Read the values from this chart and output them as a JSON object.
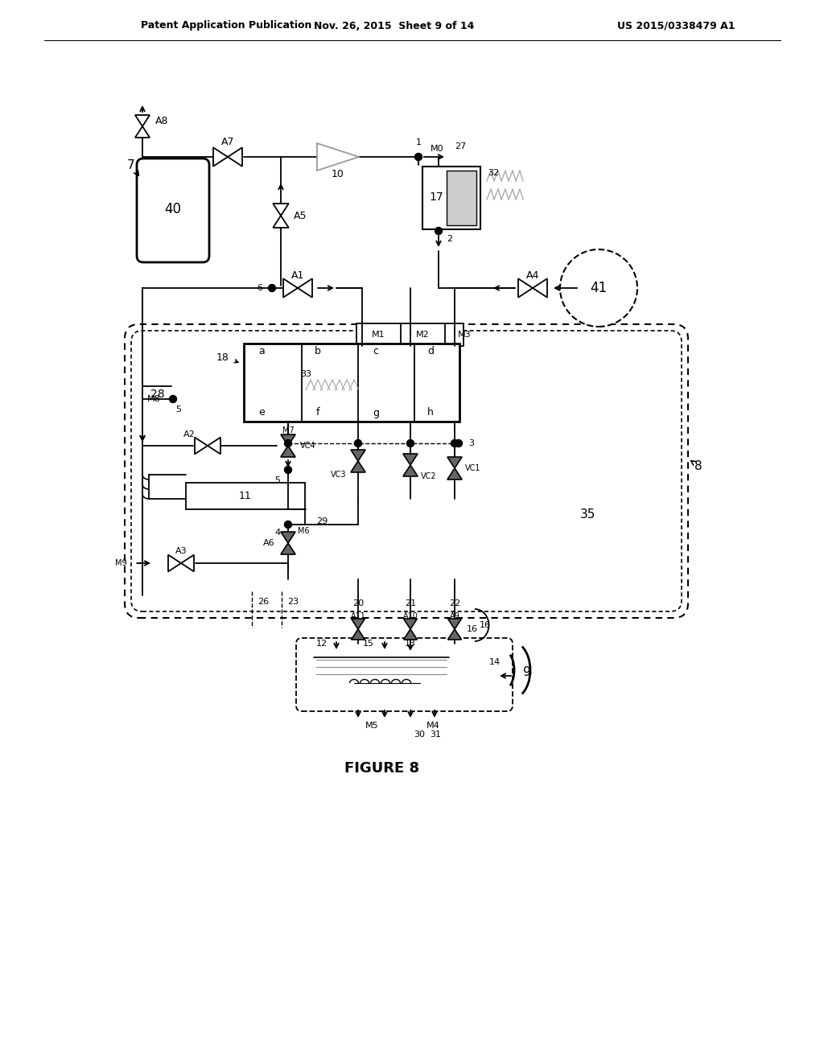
{
  "title": "FIGURE 8",
  "header_left": "Patent Application Publication",
  "header_mid": "Nov. 26, 2015  Sheet 9 of 14",
  "header_right": "US 2015/0338479 A1"
}
